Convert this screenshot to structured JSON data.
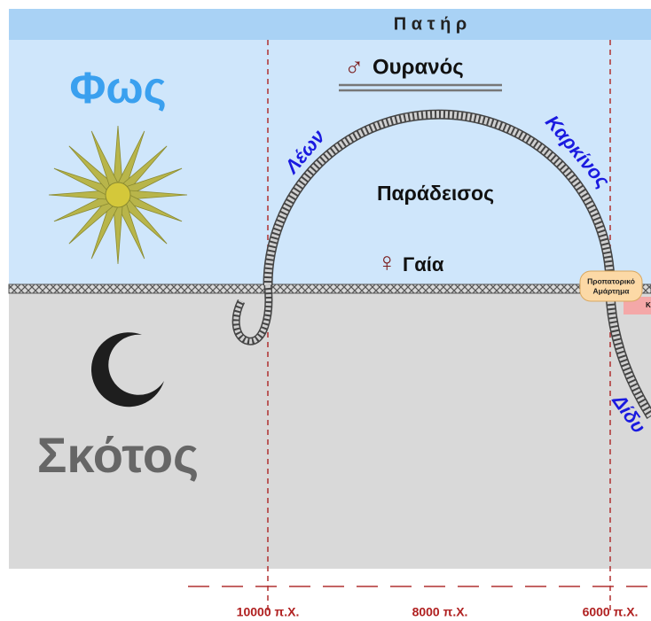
{
  "header": {
    "title": "Π α τ ή ρ"
  },
  "light": "Φως",
  "darkness": "Σκότος",
  "ouranos": {
    "symbol": "♂",
    "name": "Ουρανός"
  },
  "gaia": {
    "symbol": "♀",
    "name": "Γαία"
  },
  "paradise": "Παράδεισος",
  "signs": {
    "leo": "Λέων",
    "cancer": "Καρκίνος",
    "gemini": "Δίδυ"
  },
  "sin": {
    "line1": "Προπατορικό",
    "line2": "Αμάρτημα"
  },
  "cut_box": "Κ",
  "timeline": [
    "10000 π.Χ.",
    "8000 π.Χ.",
    "6000 π.Χ."
  ]
}
